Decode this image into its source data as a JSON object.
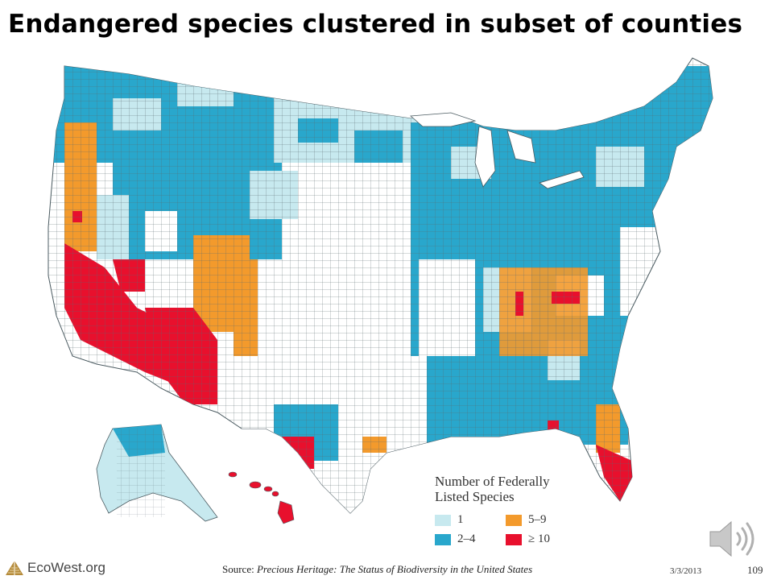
{
  "slide": {
    "title": "Endangered species clustered in subset of counties",
    "date": "3/3/2013",
    "page_number": "109"
  },
  "legend": {
    "title_line1": "Number of Federally",
    "title_line2": "Listed Species",
    "items": [
      {
        "label": "1",
        "color": "#c7e9ef"
      },
      {
        "label": "5–9",
        "color": "#f39a2c"
      },
      {
        "label": "2–4",
        "color": "#29a7cc"
      },
      {
        "label": "≥ 10",
        "color": "#e8102d"
      }
    ]
  },
  "footer": {
    "brand": "EcoWest.org",
    "source_prefix": "Source: ",
    "source_title": "Precious Heritage: The Status of Biodiversity in the United States"
  },
  "colors": {
    "none": "#ffffff",
    "one": "#c7e9ef",
    "two_to_four": "#29a7cc",
    "five_to_nine": "#f39a2c",
    "ten_plus": "#e8102d",
    "county_border": "#5a6a70"
  },
  "icons": {
    "logo": "eco-west-tent-icon",
    "audio": "speaker-icon"
  }
}
